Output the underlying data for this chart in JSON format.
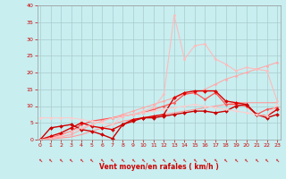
{
  "background_color": "#c8eef0",
  "grid_color": "#aacccc",
  "xlabel": "Vent moyen/en rafales ( km/h )",
  "x_values": [
    0,
    1,
    2,
    3,
    4,
    5,
    6,
    7,
    8,
    9,
    10,
    11,
    12,
    13,
    14,
    15,
    16,
    17,
    18,
    19,
    20,
    21,
    22,
    23
  ],
  "series": [
    {
      "y": [
        0,
        0.2,
        0.5,
        0.8,
        1.5,
        2.5,
        3.5,
        4.5,
        5.5,
        6.0,
        6.5,
        7.0,
        7.5,
        8.0,
        8.5,
        9.0,
        9.5,
        10.0,
        10.5,
        11.0,
        11.0,
        11.0,
        11.0,
        11.0
      ],
      "color": "#ff9999",
      "marker": null,
      "linewidth": 0.8
    },
    {
      "y": [
        0,
        0.3,
        0.8,
        1.5,
        3.0,
        4.5,
        5.5,
        6.5,
        7.5,
        8.5,
        9.5,
        10.5,
        11.5,
        12.5,
        13.5,
        14.0,
        15.0,
        16.5,
        18.0,
        19.0,
        20.0,
        21.0,
        22.0,
        23.0
      ],
      "color": "#ffaaaa",
      "marker": "D",
      "markersize": 1.5,
      "linewidth": 0.8
    },
    {
      "y": [
        0,
        0.5,
        1.5,
        2.5,
        4.5,
        5.5,
        6.0,
        6.5,
        7.0,
        7.5,
        8.0,
        9.0,
        10.0,
        11.0,
        13.5,
        14.0,
        12.0,
        14.0,
        10.5,
        10.5,
        10.0,
        7.5,
        9.0,
        9.5
      ],
      "color": "#ff5555",
      "marker": "D",
      "markersize": 1.5,
      "linewidth": 0.9
    },
    {
      "y": [
        0,
        1.0,
        2.0,
        3.5,
        5.0,
        4.0,
        3.5,
        3.0,
        4.5,
        6.0,
        6.5,
        7.0,
        7.5,
        12.5,
        14.0,
        14.5,
        14.5,
        14.5,
        11.5,
        11.0,
        10.5,
        7.5,
        7.0,
        9.0
      ],
      "color": "#dd0000",
      "marker": "D",
      "markersize": 2.0,
      "linewidth": 1.0
    },
    {
      "y": [
        0,
        3.5,
        4.0,
        4.5,
        3.0,
        2.5,
        1.5,
        0.3,
        4.5,
        5.5,
        6.5,
        6.5,
        7.0,
        7.5,
        8.0,
        8.5,
        8.5,
        8.0,
        8.5,
        10.0,
        10.5,
        7.5,
        6.5,
        7.5
      ],
      "color": "#cc0000",
      "marker": "D",
      "markersize": 2.0,
      "linewidth": 1.0
    },
    {
      "y": [
        6.5,
        6.5,
        6.5,
        6.5,
        6.0,
        5.5,
        5.0,
        4.5,
        7.0,
        7.5,
        8.0,
        8.5,
        9.0,
        9.5,
        10.0,
        10.5,
        10.0,
        9.5,
        9.0,
        8.5,
        8.0,
        7.5,
        7.0,
        10.5
      ],
      "color": "#ffcccc",
      "marker": "D",
      "markersize": 1.5,
      "linewidth": 0.8
    },
    {
      "y": [
        0,
        0.4,
        1.2,
        2.5,
        3.5,
        4.5,
        5.5,
        6.5,
        7.0,
        7.5,
        8.5,
        9.5,
        13.5,
        37.0,
        24.0,
        28.0,
        28.5,
        24.0,
        22.5,
        20.5,
        21.5,
        21.0,
        20.5,
        11.5
      ],
      "color": "#ffbbbb",
      "marker": "D",
      "markersize": 1.5,
      "linewidth": 0.8
    }
  ],
  "xlim": [
    -0.3,
    23.3
  ],
  "ylim": [
    0,
    40
  ],
  "yticks": [
    0,
    5,
    10,
    15,
    20,
    25,
    30,
    35,
    40
  ],
  "xticks": [
    0,
    1,
    2,
    3,
    4,
    5,
    6,
    7,
    8,
    9,
    10,
    11,
    12,
    13,
    14,
    15,
    16,
    17,
    18,
    19,
    20,
    21,
    22,
    23
  ],
  "tick_color": "#cc0000",
  "label_color": "#cc0000"
}
